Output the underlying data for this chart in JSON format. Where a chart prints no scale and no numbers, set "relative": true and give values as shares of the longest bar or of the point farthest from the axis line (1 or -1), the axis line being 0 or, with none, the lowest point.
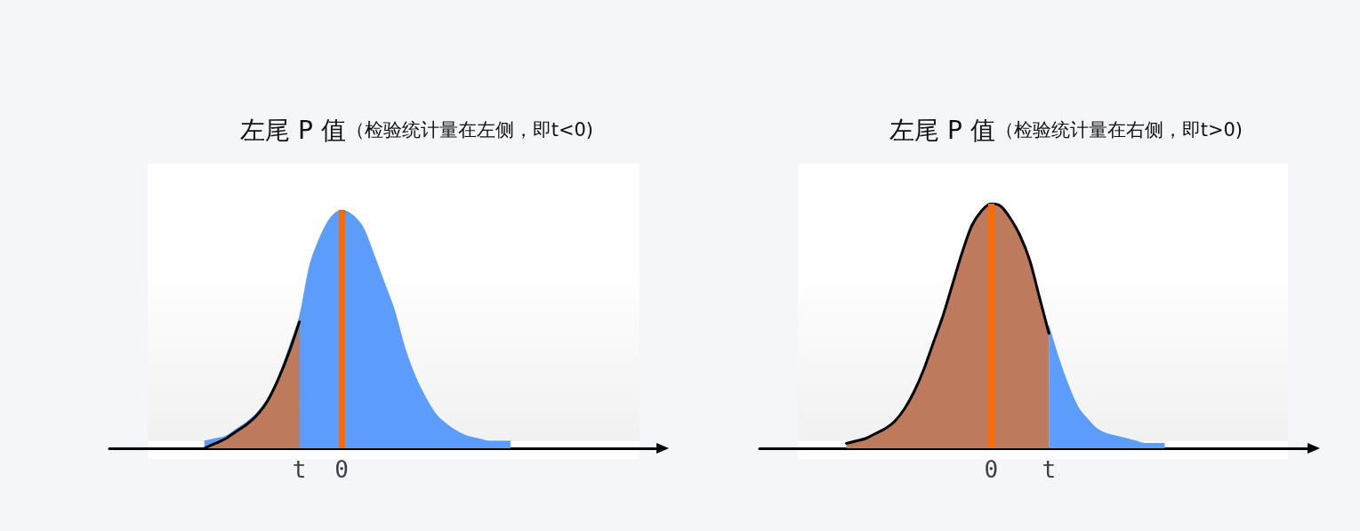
{
  "chart_data": [
    {
      "type": "area",
      "title": "左尾 P 值",
      "subtitle": "（检验统计量在左侧，即t<0)",
      "relative": true,
      "tick_labels": "x",
      "marker": "none",
      "categories": [
        null,
        null,
        null,
        null,
        null,
        null,
        null,
        null,
        null,
        null,
        null,
        null,
        null,
        null,
        null,
        null,
        null,
        null,
        "t",
        null,
        null,
        null,
        "0",
        null,
        null,
        null,
        null,
        null,
        null,
        null,
        null,
        null,
        null,
        null,
        null,
        null,
        null,
        null,
        null,
        null,
        null,
        null,
        null,
        null,
        null,
        null,
        null,
        null,
        null,
        null,
        null,
        null,
        null
      ],
      "series": [
        {
          "color": "#5c9cfa",
          "values": [
            null,
            null,
            null,
            null,
            null,
            null,
            null,
            null,
            null,
            0.03,
            0.04,
            0.05,
            0.08,
            0.11,
            0.15,
            0.21,
            0.3,
            0.42,
            0.55,
            0.77,
            0.89,
            0.97,
            1.0,
            0.98,
            0.93,
            0.82,
            0.7,
            0.58,
            0.42,
            0.3,
            0.21,
            0.14,
            0.1,
            0.07,
            0.05,
            0.04,
            0.03,
            0.03,
            0.03,
            null,
            null,
            null,
            null,
            null,
            null,
            null,
            null,
            null,
            null,
            null,
            null,
            null,
            null
          ]
        },
        {
          "color": "#bd7a5c",
          "values": [
            null,
            null,
            null,
            null,
            null,
            null,
            null,
            null,
            null,
            0,
            0.02,
            0.04,
            0.07,
            0.1,
            0.14,
            0.2,
            0.29,
            0.4,
            0.53,
            null,
            null,
            null,
            null,
            null,
            null,
            null,
            null,
            null,
            null,
            null,
            null,
            null,
            null,
            null,
            null,
            null,
            null,
            null,
            null,
            null,
            null,
            null,
            null,
            null,
            null,
            null,
            null,
            null,
            null,
            null,
            null,
            null,
            null
          ]
        }
      ],
      "ref_lines": [
        {
          "axis": "x",
          "value": "0",
          "color": "#ff6a00"
        }
      ]
    },
    {
      "type": "area",
      "title": "左尾 P 值",
      "subtitle": "（检验统计量在右侧，即t>0)",
      "relative": true,
      "tick_labels": "x",
      "marker": "none",
      "categories": [
        null,
        null,
        null,
        null,
        null,
        null,
        null,
        null,
        null,
        null,
        null,
        null,
        null,
        null,
        null,
        null,
        null,
        null,
        null,
        null,
        null,
        null,
        null,
        null,
        "0",
        null,
        null,
        null,
        null,
        null,
        "t",
        null,
        null,
        null,
        null,
        null,
        null,
        null,
        null,
        null,
        null,
        null,
        null,
        null,
        null,
        null,
        null,
        null,
        null,
        null,
        null,
        null,
        null,
        null,
        null,
        null,
        null,
        null
      ],
      "series": [
        {
          "color": "#5c9cfa",
          "values": [
            null,
            null,
            null,
            null,
            null,
            null,
            null,
            null,
            null,
            null,
            null,
            null,
            null,
            null,
            null,
            null,
            null,
            null,
            null,
            null,
            null,
            null,
            null,
            null,
            null,
            null,
            null,
            null,
            null,
            null,
            0.5,
            0.37,
            0.26,
            0.17,
            0.12,
            0.08,
            0.06,
            0.05,
            0.04,
            0.03,
            0.02,
            0.02,
            0.02,
            null,
            null,
            null,
            null,
            null,
            null,
            null,
            null,
            null,
            null,
            null,
            null,
            null,
            null,
            null
          ]
        },
        {
          "color": "#bd7a5c",
          "values": [
            null,
            null,
            null,
            null,
            null,
            null,
            null,
            null,
            null,
            0.02,
            0.03,
            0.04,
            0.06,
            0.08,
            0.11,
            0.16,
            0.23,
            0.32,
            0.43,
            0.54,
            0.67,
            0.8,
            0.91,
            0.97,
            1.0,
            0.99,
            0.94,
            0.87,
            0.77,
            0.62,
            0.47,
            null,
            null,
            null,
            null,
            null,
            null,
            null,
            null,
            null,
            null,
            null,
            null,
            null,
            null,
            null,
            null,
            null,
            null,
            null,
            null,
            null,
            null,
            null,
            null,
            null,
            null,
            null
          ]
        }
      ],
      "ref_lines": [
        {
          "axis": "x",
          "value": "0",
          "color": "#ff6a00"
        }
      ]
    }
  ]
}
